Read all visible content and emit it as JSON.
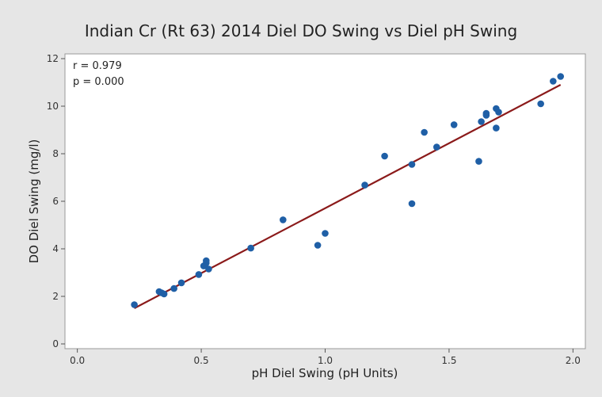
{
  "chart_data": {
    "type": "scatter",
    "title": "Indian Cr (Rt 63) 2014 Diel DO Swing vs Diel pH Swing",
    "xlabel": "pH Diel Swing (pH Units)",
    "ylabel": "DO Diel Swing (mg/l)",
    "xlim": [
      -0.05,
      2.05
    ],
    "ylim": [
      -0.2,
      12.2
    ],
    "x_ticks": [
      0.0,
      0.5,
      1.0,
      1.5,
      2.0
    ],
    "x_tick_labels": [
      "0.0",
      "0.5",
      "1.0",
      "1.5",
      "2.0"
    ],
    "y_ticks": [
      0,
      2,
      4,
      6,
      8,
      10,
      12
    ],
    "y_tick_labels": [
      "0",
      "2",
      "4",
      "6",
      "8",
      "10",
      "12"
    ],
    "grid": false,
    "annotations": [
      "r = 0.979",
      "p = 0.000"
    ],
    "point_color": "#1f5fa6",
    "fit_line_color": "#8b1a1a",
    "fit_line": {
      "x": [
        0.23,
        1.95
      ],
      "y": [
        1.5,
        10.9
      ]
    },
    "series": [
      {
        "x": [
          0.23,
          0.33,
          0.34,
          0.35,
          0.39,
          0.42,
          0.49,
          0.51,
          0.52,
          0.52,
          0.53,
          0.7,
          0.83,
          0.97,
          1.0,
          1.16,
          1.24,
          1.35,
          1.35,
          1.4,
          1.45,
          1.52,
          1.62,
          1.63,
          1.65,
          1.65,
          1.69,
          1.69,
          1.7,
          1.87,
          1.92,
          1.95
        ],
        "y": [
          1.65,
          2.2,
          2.15,
          2.1,
          2.33,
          2.57,
          2.92,
          3.28,
          3.4,
          3.5,
          3.15,
          4.03,
          5.22,
          4.15,
          4.65,
          6.68,
          7.9,
          5.9,
          7.55,
          8.9,
          8.28,
          9.22,
          7.68,
          9.35,
          9.62,
          9.7,
          9.08,
          9.9,
          9.75,
          10.1,
          11.05,
          11.25
        ]
      }
    ]
  }
}
